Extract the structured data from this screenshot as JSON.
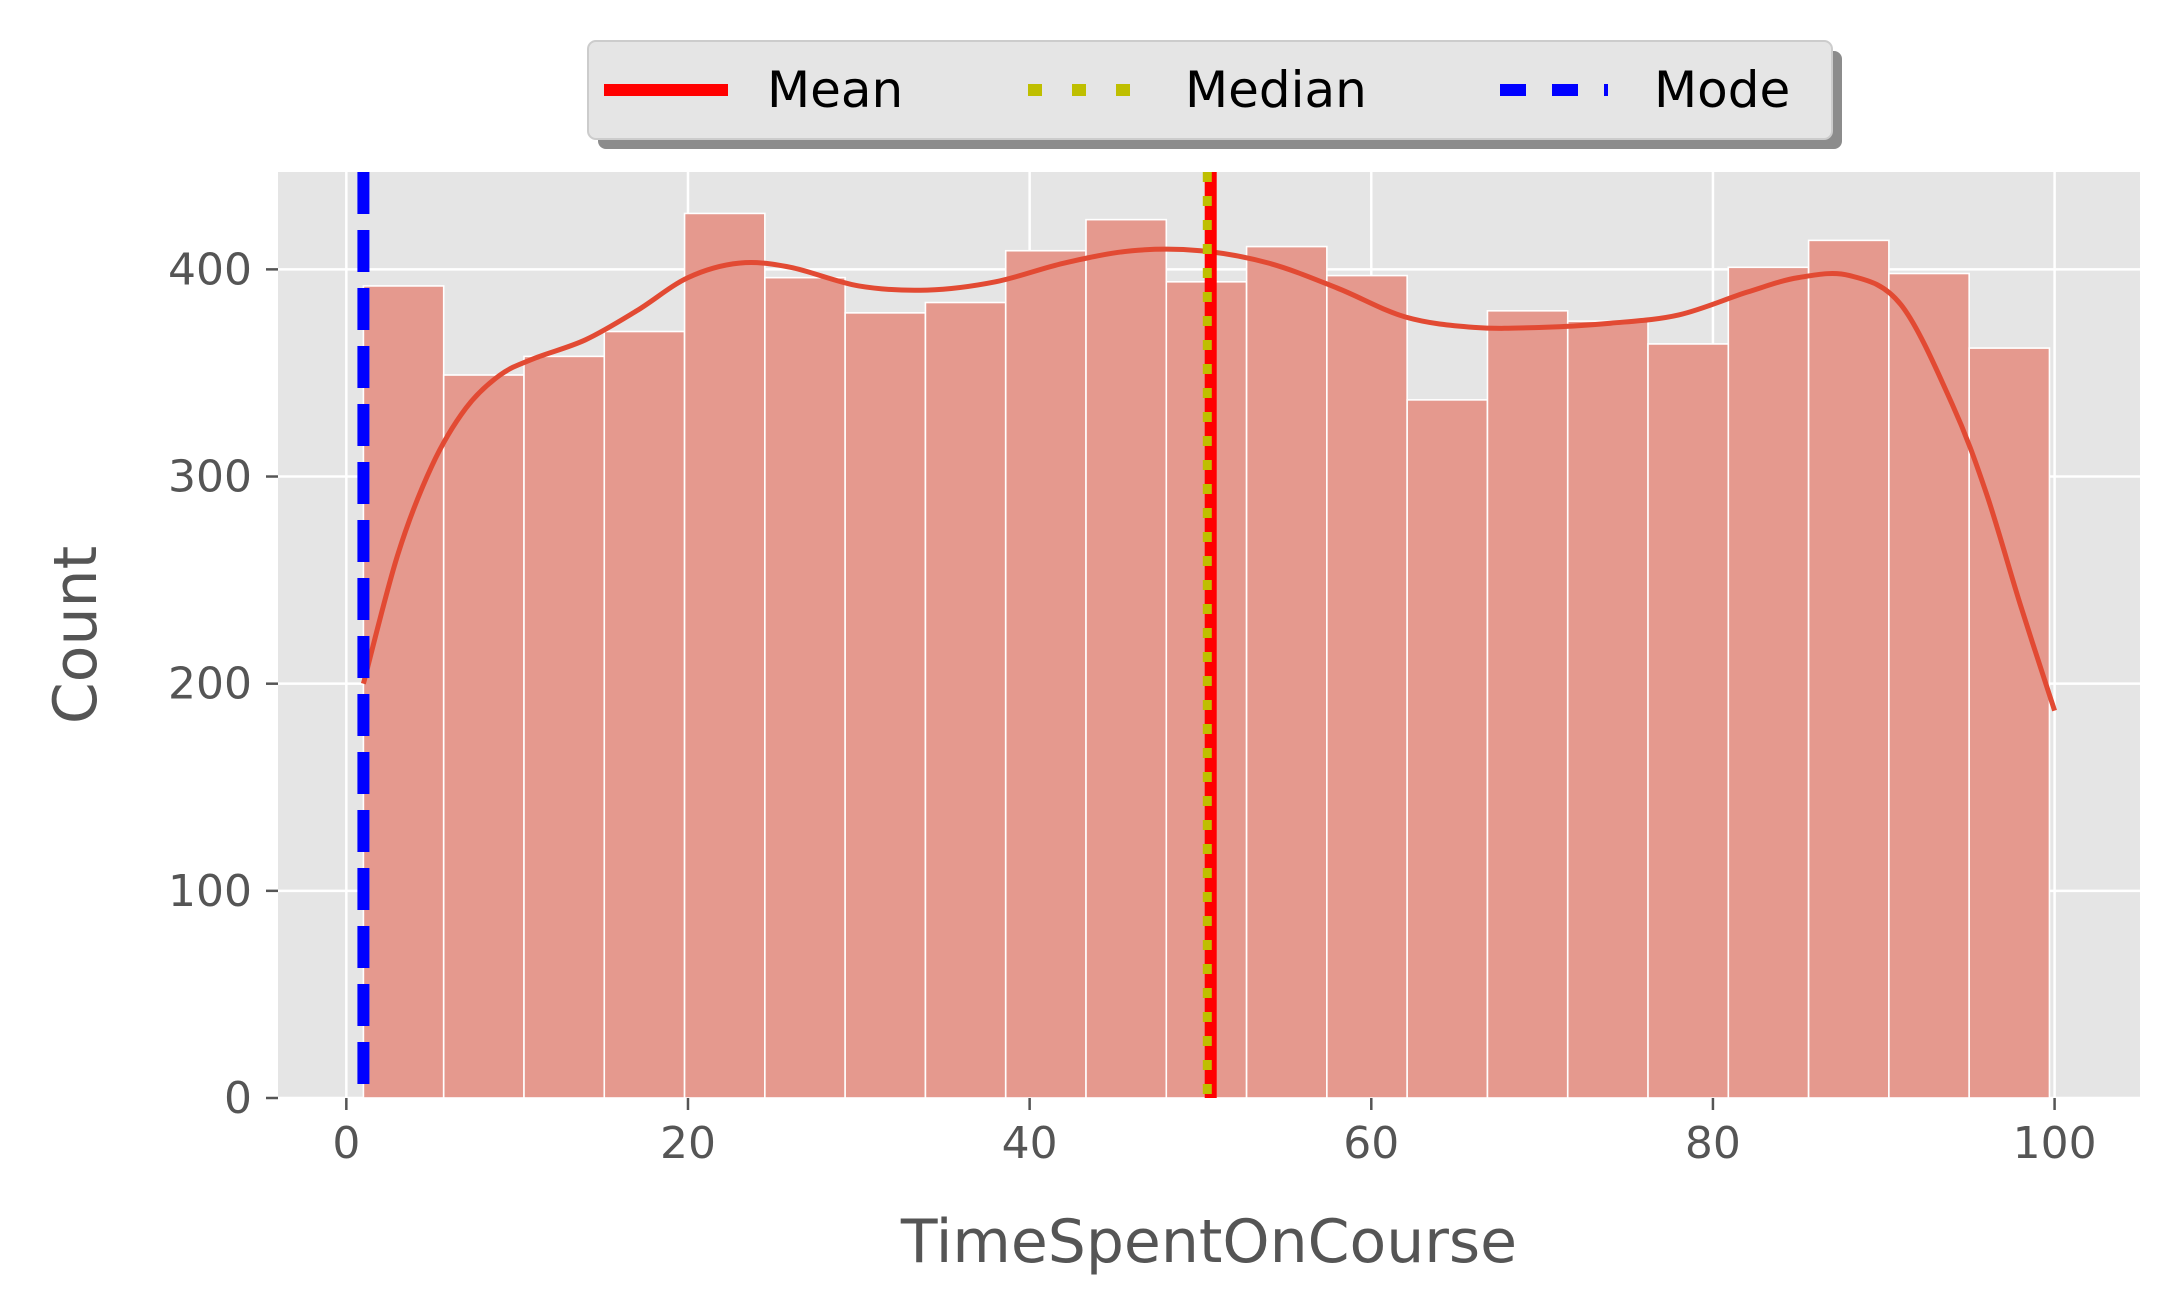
{
  "chart_data": {
    "type": "bar",
    "subtype": "histogram-with-kde",
    "title": "",
    "xlabel": "TimeSpentOnCourse",
    "ylabel": "Count",
    "xlim": [
      -4,
      105
    ],
    "ylim": [
      0,
      447
    ],
    "xticks": [
      0,
      20,
      40,
      60,
      80,
      100
    ],
    "yticks": [
      0,
      100,
      200,
      300,
      400
    ],
    "grid": true,
    "colors": {
      "background": "#E5E5E5",
      "bar_fill": "#E4968A",
      "kde": "#E24A33",
      "mean": "#FF0000",
      "median": "#BFBF00",
      "mode": "#0000FF",
      "grid": "#FFFFFF",
      "tick_text": "#555555"
    },
    "bins": {
      "start": 1.0,
      "width": 4.7,
      "counts": [
        392,
        349,
        358,
        370,
        427,
        396,
        379,
        384,
        409,
        424,
        394,
        411,
        397,
        337,
        380,
        375,
        364,
        401,
        414,
        398,
        362
      ]
    },
    "kde": {
      "x": [
        1,
        3,
        5,
        7,
        9,
        11,
        14,
        17,
        20,
        23,
        26,
        30,
        34,
        38,
        42,
        46,
        50,
        54,
        58,
        62,
        66,
        70,
        74,
        78,
        82,
        85,
        88,
        91,
        94,
        96,
        98,
        100
      ],
      "y": [
        200,
        262,
        305,
        333,
        349,
        357,
        366,
        380,
        396,
        403,
        401,
        392,
        390,
        394,
        403,
        409,
        409,
        403,
        391,
        377,
        372,
        372,
        374,
        378,
        389,
        396,
        397,
        383,
        335,
        292,
        238,
        187
      ]
    },
    "vlines": [
      {
        "name": "Mean",
        "x": 50.6,
        "style": "solid"
      },
      {
        "name": "Median",
        "x": 50.4,
        "style": "dotted"
      },
      {
        "name": "Mode",
        "x": 1.0,
        "style": "dashed"
      }
    ],
    "legend": {
      "placement": "top-center",
      "entries": [
        "Mean",
        "Median",
        "Mode"
      ]
    }
  }
}
